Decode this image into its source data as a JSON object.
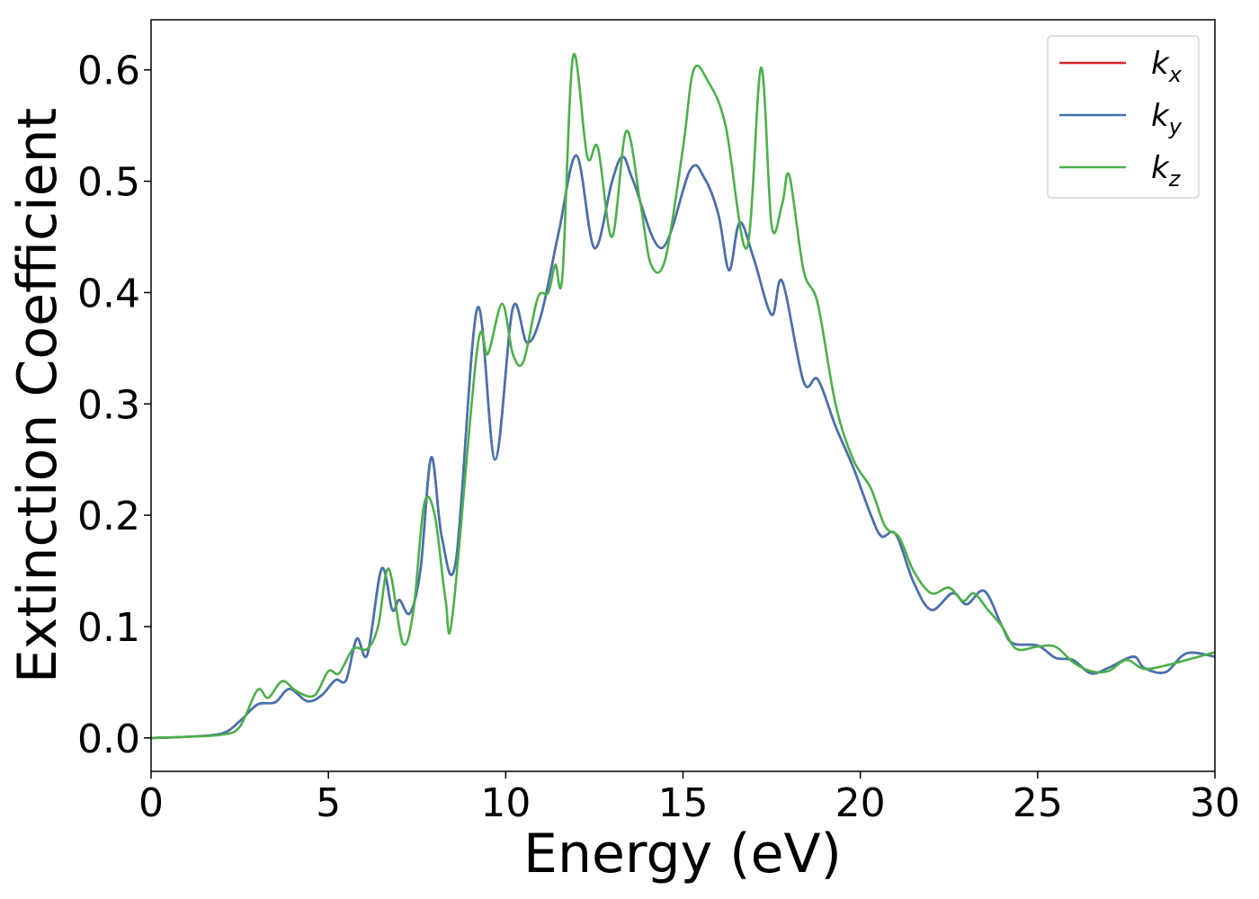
{
  "chart_data": {
    "type": "line",
    "xlabel": "Energy (eV)",
    "ylabel": "Extinction Coefficient",
    "xlim": [
      0,
      30
    ],
    "ylim": [
      -0.03,
      0.645
    ],
    "xticks": [
      "0",
      "5",
      "10",
      "15",
      "20",
      "25",
      "30"
    ],
    "yticks": [
      "0.0",
      "0.1",
      "0.2",
      "0.3",
      "0.4",
      "0.5",
      "0.6"
    ],
    "grid": false,
    "legend_position": "top-right",
    "series": [
      {
        "name": "k",
        "subscript": "x",
        "color": "#d62728",
        "points": [
          [
            0,
            0
          ],
          [
            1,
            0.001
          ],
          [
            2,
            0.004
          ],
          [
            2.5,
            0.015
          ],
          [
            3,
            0.03
          ],
          [
            3.5,
            0.032
          ],
          [
            3.9,
            0.044
          ],
          [
            4.4,
            0.033
          ],
          [
            4.8,
            0.038
          ],
          [
            5.2,
            0.052
          ],
          [
            5.5,
            0.052
          ],
          [
            5.8,
            0.089
          ],
          [
            6.1,
            0.075
          ],
          [
            6.5,
            0.152
          ],
          [
            6.8,
            0.115
          ],
          [
            7,
            0.124
          ],
          [
            7.3,
            0.112
          ],
          [
            7.6,
            0.152
          ],
          [
            7.9,
            0.252
          ],
          [
            8.2,
            0.18
          ],
          [
            8.6,
            0.16
          ],
          [
            9.2,
            0.386
          ],
          [
            9.7,
            0.25
          ],
          [
            10.2,
            0.386
          ],
          [
            10.6,
            0.355
          ],
          [
            11,
            0.38
          ],
          [
            11.5,
            0.455
          ],
          [
            12,
            0.523
          ],
          [
            12.5,
            0.44
          ],
          [
            13,
            0.5
          ],
          [
            13.3,
            0.522
          ],
          [
            13.6,
            0.5
          ],
          [
            14.4,
            0.44
          ],
          [
            15.2,
            0.51
          ],
          [
            15.6,
            0.503
          ],
          [
            16,
            0.47
          ],
          [
            16.3,
            0.42
          ],
          [
            16.6,
            0.463
          ],
          [
            17,
            0.43
          ],
          [
            17.5,
            0.38
          ],
          [
            17.8,
            0.41
          ],
          [
            18.4,
            0.32
          ],
          [
            18.8,
            0.322
          ],
          [
            19.3,
            0.28
          ],
          [
            19.8,
            0.243
          ],
          [
            20.3,
            0.2
          ],
          [
            20.6,
            0.181
          ],
          [
            21,
            0.183
          ],
          [
            21.5,
            0.14
          ],
          [
            22,
            0.115
          ],
          [
            22.6,
            0.13
          ],
          [
            23,
            0.12
          ],
          [
            23.5,
            0.132
          ],
          [
            24,
            0.1
          ],
          [
            24.3,
            0.085
          ],
          [
            25,
            0.083
          ],
          [
            25.5,
            0.072
          ],
          [
            26,
            0.07
          ],
          [
            26.5,
            0.058
          ],
          [
            27,
            0.063
          ],
          [
            27.7,
            0.073
          ],
          [
            28,
            0.063
          ],
          [
            28.6,
            0.059
          ],
          [
            29.2,
            0.076
          ],
          [
            30,
            0.073
          ]
        ]
      },
      {
        "name": "k",
        "subscript": "y",
        "color": "#4472b2",
        "points": [
          [
            0,
            0
          ],
          [
            1,
            0.001
          ],
          [
            2,
            0.004
          ],
          [
            2.5,
            0.015
          ],
          [
            3,
            0.03
          ],
          [
            3.5,
            0.032
          ],
          [
            3.9,
            0.044
          ],
          [
            4.4,
            0.033
          ],
          [
            4.8,
            0.038
          ],
          [
            5.2,
            0.052
          ],
          [
            5.5,
            0.052
          ],
          [
            5.8,
            0.089
          ],
          [
            6.1,
            0.075
          ],
          [
            6.5,
            0.152
          ],
          [
            6.8,
            0.115
          ],
          [
            7,
            0.124
          ],
          [
            7.3,
            0.112
          ],
          [
            7.6,
            0.152
          ],
          [
            7.9,
            0.252
          ],
          [
            8.2,
            0.18
          ],
          [
            8.6,
            0.16
          ],
          [
            9.2,
            0.386
          ],
          [
            9.7,
            0.25
          ],
          [
            10.2,
            0.386
          ],
          [
            10.6,
            0.355
          ],
          [
            11,
            0.38
          ],
          [
            11.5,
            0.455
          ],
          [
            12,
            0.523
          ],
          [
            12.5,
            0.44
          ],
          [
            13,
            0.5
          ],
          [
            13.3,
            0.522
          ],
          [
            13.6,
            0.5
          ],
          [
            14.4,
            0.44
          ],
          [
            15.2,
            0.51
          ],
          [
            15.6,
            0.503
          ],
          [
            16,
            0.47
          ],
          [
            16.3,
            0.42
          ],
          [
            16.6,
            0.463
          ],
          [
            17,
            0.43
          ],
          [
            17.5,
            0.38
          ],
          [
            17.8,
            0.41
          ],
          [
            18.4,
            0.32
          ],
          [
            18.8,
            0.322
          ],
          [
            19.3,
            0.28
          ],
          [
            19.8,
            0.243
          ],
          [
            20.3,
            0.2
          ],
          [
            20.6,
            0.181
          ],
          [
            21,
            0.183
          ],
          [
            21.5,
            0.14
          ],
          [
            22,
            0.115
          ],
          [
            22.6,
            0.13
          ],
          [
            23,
            0.12
          ],
          [
            23.5,
            0.132
          ],
          [
            24,
            0.1
          ],
          [
            24.3,
            0.085
          ],
          [
            25,
            0.083
          ],
          [
            25.5,
            0.072
          ],
          [
            26,
            0.07
          ],
          [
            26.5,
            0.058
          ],
          [
            27,
            0.063
          ],
          [
            27.7,
            0.073
          ],
          [
            28,
            0.063
          ],
          [
            28.6,
            0.059
          ],
          [
            29.2,
            0.076
          ],
          [
            30,
            0.073
          ]
        ]
      },
      {
        "name": "k",
        "subscript": "z",
        "color": "#4daf4a",
        "points": [
          [
            0,
            0
          ],
          [
            1,
            0.001
          ],
          [
            2,
            0.003
          ],
          [
            2.5,
            0.01
          ],
          [
            3,
            0.043
          ],
          [
            3.3,
            0.036
          ],
          [
            3.7,
            0.051
          ],
          [
            4.1,
            0.042
          ],
          [
            4.6,
            0.038
          ],
          [
            5,
            0.06
          ],
          [
            5.3,
            0.058
          ],
          [
            5.7,
            0.08
          ],
          [
            6.1,
            0.08
          ],
          [
            6.4,
            0.1
          ],
          [
            6.7,
            0.152
          ],
          [
            7.1,
            0.085
          ],
          [
            7.4,
            0.115
          ],
          [
            7.7,
            0.21
          ],
          [
            8,
            0.2
          ],
          [
            8.3,
            0.125
          ],
          [
            8.5,
            0.11
          ],
          [
            9.2,
            0.35
          ],
          [
            9.5,
            0.345
          ],
          [
            9.9,
            0.39
          ],
          [
            10.2,
            0.345
          ],
          [
            10.5,
            0.338
          ],
          [
            10.9,
            0.395
          ],
          [
            11.2,
            0.4
          ],
          [
            11.4,
            0.425
          ],
          [
            11.6,
            0.415
          ],
          [
            11.9,
            0.612
          ],
          [
            12.3,
            0.522
          ],
          [
            12.6,
            0.53
          ],
          [
            13,
            0.45
          ],
          [
            13.4,
            0.545
          ],
          [
            13.8,
            0.48
          ],
          [
            14.1,
            0.425
          ],
          [
            14.5,
            0.43
          ],
          [
            15,
            0.53
          ],
          [
            15.3,
            0.6
          ],
          [
            15.7,
            0.59
          ],
          [
            16.2,
            0.55
          ],
          [
            16.8,
            0.44
          ],
          [
            17.2,
            0.602
          ],
          [
            17.5,
            0.46
          ],
          [
            17.8,
            0.48
          ],
          [
            18,
            0.505
          ],
          [
            18.4,
            0.42
          ],
          [
            18.8,
            0.39
          ],
          [
            19.3,
            0.3
          ],
          [
            19.8,
            0.25
          ],
          [
            20.3,
            0.224
          ],
          [
            20.7,
            0.19
          ],
          [
            21.1,
            0.18
          ],
          [
            21.5,
            0.15
          ],
          [
            22,
            0.13
          ],
          [
            22.5,
            0.135
          ],
          [
            22.9,
            0.123
          ],
          [
            23.2,
            0.13
          ],
          [
            23.6,
            0.115
          ],
          [
            24,
            0.1
          ],
          [
            24.4,
            0.08
          ],
          [
            25,
            0.082
          ],
          [
            25.5,
            0.082
          ],
          [
            26,
            0.068
          ],
          [
            26.5,
            0.06
          ],
          [
            27,
            0.06
          ],
          [
            27.5,
            0.07
          ],
          [
            28,
            0.062
          ],
          [
            28.6,
            0.065
          ],
          [
            29.2,
            0.07
          ],
          [
            30,
            0.077
          ]
        ]
      }
    ]
  }
}
